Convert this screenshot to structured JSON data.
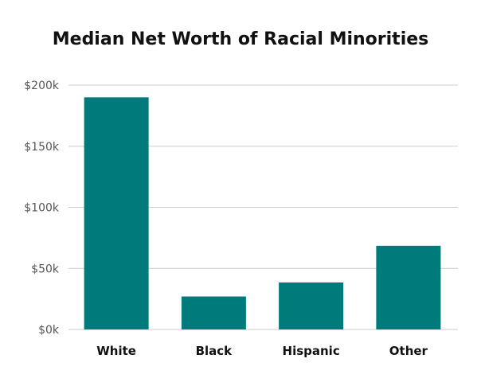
{
  "chart_data": {
    "type": "bar",
    "title": "Median Net Worth of Racial Minorities",
    "xlabel": "",
    "ylabel": "",
    "categories": [
      "White",
      "Black",
      "Hispanic",
      "Other"
    ],
    "values": [
      190000,
      27000,
      38500,
      68500
    ],
    "ylim": [
      0,
      200000
    ],
    "y_ticks": [
      0,
      50000,
      100000,
      150000,
      200000
    ],
    "y_tick_labels": [
      "$0k",
      "$50k",
      "$100k",
      "$150k",
      "$200k"
    ],
    "grid": true,
    "legend": "none",
    "bar_color": "#007a7a"
  }
}
